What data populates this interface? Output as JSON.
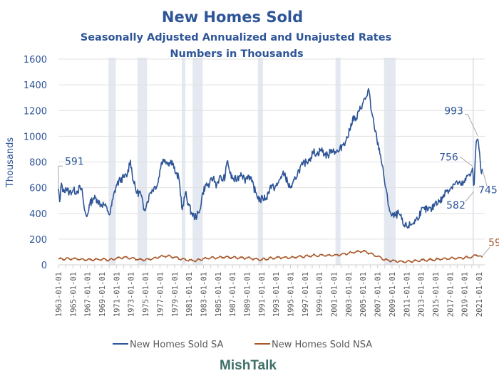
{
  "chart_data": {
    "type": "line",
    "title": "New Homes Sold",
    "subtitle": "Seasonally Adjusted Annualized and Unajusted Rates",
    "subtitle2": "Numbers in Thousands",
    "ylabel": "Thousands",
    "xlabel": "",
    "ylim": [
      0,
      1600
    ],
    "yticks": [
      0,
      200,
      400,
      600,
      800,
      1000,
      1200,
      1400,
      1600
    ],
    "ytick_labels": [
      "0",
      "200",
      "400",
      "600",
      "800",
      "1000",
      "1200",
      "1400",
      "1600"
    ],
    "xlim_years": [
      1963.0,
      2021.6
    ],
    "xtick_labels": [
      "1963-01-01",
      "1965-01-01",
      "1967-01-01",
      "1969-01-01",
      "1971-01-01",
      "1973-01-01",
      "1975-01-01",
      "1977-01-01",
      "1979-01-01",
      "1981-01-01",
      "1983-01-01",
      "1985-01-01",
      "1987-01-01",
      "1989-01-01",
      "1991-01-01",
      "1993-01-01",
      "1995-01-01",
      "1997-01-01",
      "1999-01-01",
      "2001-01-01",
      "2003-01-01",
      "2005-01-01",
      "2007-01-01",
      "2009-01-01",
      "2011-01-01",
      "2013-01-01",
      "2015-01-01",
      "2017-01-01",
      "2019-01-01",
      "2021-01-01"
    ],
    "grid": true,
    "legend_position": "bottom",
    "recessions": [
      [
        1969.9,
        1970.9
      ],
      [
        1973.9,
        1975.2
      ],
      [
        1980.0,
        1980.5
      ],
      [
        1981.5,
        1982.9
      ],
      [
        1990.5,
        1991.2
      ],
      [
        2001.2,
        2001.9
      ],
      [
        2007.9,
        2009.5
      ],
      [
        2020.1,
        2020.3
      ]
    ],
    "series": [
      {
        "name": "New Homes Sold SA",
        "color": "#2E5597",
        "anchors": [
          [
            1963.0,
            591
          ],
          [
            1963.2,
            470
          ],
          [
            1963.4,
            640
          ],
          [
            1963.7,
            560
          ],
          [
            1964.0,
            600
          ],
          [
            1964.5,
            560
          ],
          [
            1965.0,
            580
          ],
          [
            1965.5,
            570
          ],
          [
            1966.0,
            600
          ],
          [
            1966.3,
            560
          ],
          [
            1966.6,
            420
          ],
          [
            1966.9,
            370
          ],
          [
            1967.3,
            470
          ],
          [
            1967.8,
            520
          ],
          [
            1968.3,
            510
          ],
          [
            1968.8,
            470
          ],
          [
            1969.3,
            470
          ],
          [
            1969.8,
            420
          ],
          [
            1970.1,
            390
          ],
          [
            1970.5,
            510
          ],
          [
            1971.0,
            620
          ],
          [
            1971.5,
            660
          ],
          [
            1972.0,
            680
          ],
          [
            1972.5,
            700
          ],
          [
            1972.9,
            820
          ],
          [
            1973.3,
            660
          ],
          [
            1973.8,
            560
          ],
          [
            1974.3,
            560
          ],
          [
            1974.8,
            430
          ],
          [
            1975.2,
            480
          ],
          [
            1975.7,
            570
          ],
          [
            1976.2,
            600
          ],
          [
            1976.7,
            630
          ],
          [
            1977.2,
            800
          ],
          [
            1977.7,
            820
          ],
          [
            1978.2,
            790
          ],
          [
            1978.7,
            810
          ],
          [
            1979.2,
            700
          ],
          [
            1979.6,
            680
          ],
          [
            1980.1,
            420
          ],
          [
            1980.5,
            560
          ],
          [
            1980.9,
            480
          ],
          [
            1981.3,
            410
          ],
          [
            1981.8,
            370
          ],
          [
            1982.4,
            400
          ],
          [
            1982.9,
            560
          ],
          [
            1983.3,
            620
          ],
          [
            1983.8,
            620
          ],
          [
            1984.3,
            680
          ],
          [
            1984.8,
            620
          ],
          [
            1985.2,
            680
          ],
          [
            1985.6,
            660
          ],
          [
            1986.0,
            690
          ],
          [
            1986.3,
            820
          ],
          [
            1986.7,
            700
          ],
          [
            1987.2,
            660
          ],
          [
            1987.7,
            670
          ],
          [
            1988.2,
            720
          ],
          [
            1988.7,
            660
          ],
          [
            1989.2,
            700
          ],
          [
            1989.7,
            640
          ],
          [
            1990.2,
            560
          ],
          [
            1990.8,
            500
          ],
          [
            1991.2,
            520
          ],
          [
            1991.7,
            520
          ],
          [
            1992.2,
            610
          ],
          [
            1992.7,
            600
          ],
          [
            1993.2,
            620
          ],
          [
            1993.7,
            690
          ],
          [
            1994.2,
            710
          ],
          [
            1994.7,
            620
          ],
          [
            1995.2,
            600
          ],
          [
            1995.7,
            680
          ],
          [
            1996.2,
            740
          ],
          [
            1996.7,
            780
          ],
          [
            1997.2,
            800
          ],
          [
            1997.7,
            830
          ],
          [
            1998.2,
            880
          ],
          [
            1998.7,
            860
          ],
          [
            1999.2,
            900
          ],
          [
            1999.7,
            860
          ],
          [
            2000.2,
            850
          ],
          [
            2000.7,
            900
          ],
          [
            2001.2,
            880
          ],
          [
            2001.7,
            880
          ],
          [
            2002.2,
            940
          ],
          [
            2002.7,
            970
          ],
          [
            2003.2,
            1050
          ],
          [
            2003.6,
            1150
          ],
          [
            2004.0,
            1120
          ],
          [
            2004.5,
            1200
          ],
          [
            2005.0,
            1260
          ],
          [
            2005.5,
            1310
          ],
          [
            2005.8,
            1370
          ],
          [
            2006.1,
            1200
          ],
          [
            2006.5,
            1100
          ],
          [
            2006.9,
            980
          ],
          [
            2007.4,
            860
          ],
          [
            2007.9,
            680
          ],
          [
            2008.4,
            500
          ],
          [
            2008.9,
            380
          ],
          [
            2009.4,
            380
          ],
          [
            2009.9,
            400
          ],
          [
            2010.3,
            360
          ],
          [
            2010.6,
            300
          ],
          [
            2011.0,
            300
          ],
          [
            2011.5,
            310
          ],
          [
            2012.0,
            330
          ],
          [
            2012.5,
            360
          ],
          [
            2013.0,
            420
          ],
          [
            2013.5,
            430
          ],
          [
            2014.0,
            430
          ],
          [
            2014.5,
            430
          ],
          [
            2015.0,
            490
          ],
          [
            2015.5,
            490
          ],
          [
            2016.0,
            520
          ],
          [
            2016.5,
            580
          ],
          [
            2017.0,
            590
          ],
          [
            2017.5,
            630
          ],
          [
            2018.0,
            640
          ],
          [
            2018.5,
            620
          ],
          [
            2019.0,
            640
          ],
          [
            2019.5,
            700
          ],
          [
            2019.9,
            720
          ],
          [
            2020.1,
            756
          ],
          [
            2020.3,
            582
          ],
          [
            2020.6,
            960
          ],
          [
            2020.8,
            993
          ],
          [
            2021.0,
            900
          ],
          [
            2021.2,
            780
          ],
          [
            2021.35,
            700
          ],
          [
            2021.5,
            745
          ]
        ]
      },
      {
        "name": "New Homes Sold NSA",
        "color": "#A9582A",
        "anchors": [
          [
            1963.0,
            45
          ],
          [
            1965.0,
            48
          ],
          [
            1967.0,
            40
          ],
          [
            1969.0,
            42
          ],
          [
            1970.0,
            38
          ],
          [
            1971.0,
            50
          ],
          [
            1972.0,
            58
          ],
          [
            1973.0,
            52
          ],
          [
            1974.0,
            42
          ],
          [
            1975.0,
            40
          ],
          [
            1976.0,
            48
          ],
          [
            1977.0,
            65
          ],
          [
            1978.0,
            68
          ],
          [
            1979.0,
            60
          ],
          [
            1980.0,
            45
          ],
          [
            1981.0,
            36
          ],
          [
            1982.0,
            32
          ],
          [
            1983.0,
            48
          ],
          [
            1984.0,
            53
          ],
          [
            1985.0,
            56
          ],
          [
            1986.0,
            62
          ],
          [
            1987.0,
            56
          ],
          [
            1988.0,
            55
          ],
          [
            1989.0,
            54
          ],
          [
            1990.0,
            45
          ],
          [
            1991.0,
            40
          ],
          [
            1992.0,
            50
          ],
          [
            1993.0,
            55
          ],
          [
            1994.0,
            57
          ],
          [
            1995.0,
            55
          ],
          [
            1996.0,
            62
          ],
          [
            1997.0,
            66
          ],
          [
            1998.0,
            73
          ],
          [
            1999.0,
            74
          ],
          [
            2000.0,
            72
          ],
          [
            2001.0,
            75
          ],
          [
            2002.0,
            80
          ],
          [
            2003.0,
            90
          ],
          [
            2004.0,
            100
          ],
          [
            2005.0,
            106
          ],
          [
            2006.0,
            90
          ],
          [
            2007.0,
            65
          ],
          [
            2008.0,
            40
          ],
          [
            2009.0,
            32
          ],
          [
            2010.0,
            27
          ],
          [
            2011.0,
            25
          ],
          [
            2012.0,
            30
          ],
          [
            2013.0,
            36
          ],
          [
            2014.0,
            37
          ],
          [
            2015.0,
            42
          ],
          [
            2016.0,
            47
          ],
          [
            2017.0,
            50
          ],
          [
            2018.0,
            52
          ],
          [
            2019.0,
            56
          ],
          [
            2020.0,
            60
          ],
          [
            2020.6,
            80
          ],
          [
            2021.0,
            68
          ],
          [
            2021.5,
            59
          ]
        ]
      }
    ],
    "annotations": [
      {
        "series": "New Homes Sold SA",
        "x_year": 1963.0,
        "value": 591,
        "label": "591"
      },
      {
        "series": "New Homes Sold SA",
        "x_year": 2020.8,
        "value": 993,
        "label": "993"
      },
      {
        "series": "New Homes Sold SA",
        "x_year": 2020.1,
        "value": 756,
        "label": "756"
      },
      {
        "series": "New Homes Sold SA",
        "x_year": 2020.3,
        "value": 582,
        "label": "582"
      },
      {
        "series": "New Homes Sold SA",
        "x_year": 2021.5,
        "value": 745,
        "label": "745"
      },
      {
        "series": "New Homes Sold NSA",
        "x_year": 2021.5,
        "value": 59,
        "label": "59"
      }
    ]
  },
  "legend": {
    "items": [
      {
        "label": "New Homes Sold SA",
        "color": "#2E5597"
      },
      {
        "label": "New Homes Sold NSA",
        "color": "#A9582A"
      }
    ]
  },
  "branding": {
    "label": "MishTalk"
  },
  "colors": {
    "recession": "#E4E8F0",
    "grid": "#E0E0E0",
    "sa": "#2E5597",
    "nsa": "#A9582A"
  }
}
